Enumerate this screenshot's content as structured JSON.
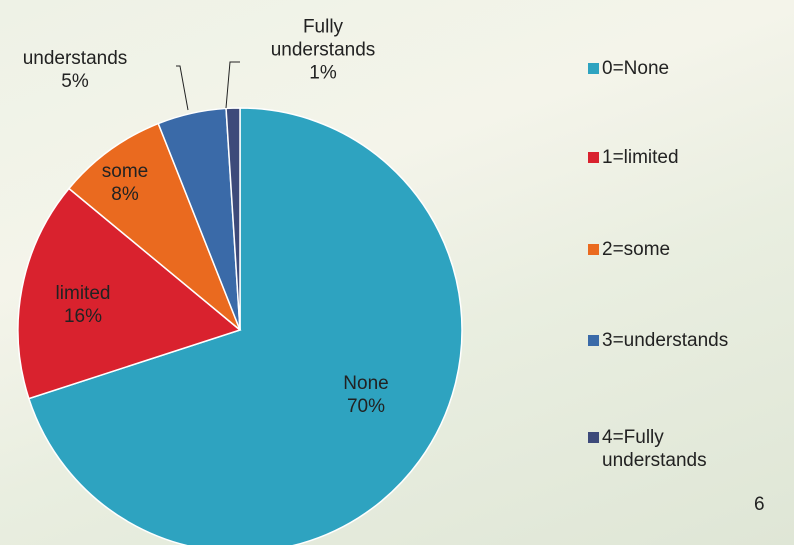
{
  "chart_data": {
    "type": "pie",
    "categories": [
      "0=None",
      "1=limited",
      "2=some",
      "3=understands",
      "4=Fully understands"
    ],
    "data_labels": [
      "None",
      "limited",
      "some",
      "understands",
      "Fully understands"
    ],
    "values": [
      70,
      16,
      8,
      5,
      1
    ],
    "value_labels": [
      "70%",
      "16%",
      "8%",
      "5%",
      "1%"
    ],
    "colors": [
      "#2ea3c0",
      "#d9222e",
      "#ea6a1f",
      "#3a6aa8",
      "#3d4a7a"
    ],
    "legend": "right"
  },
  "page_number": "6"
}
